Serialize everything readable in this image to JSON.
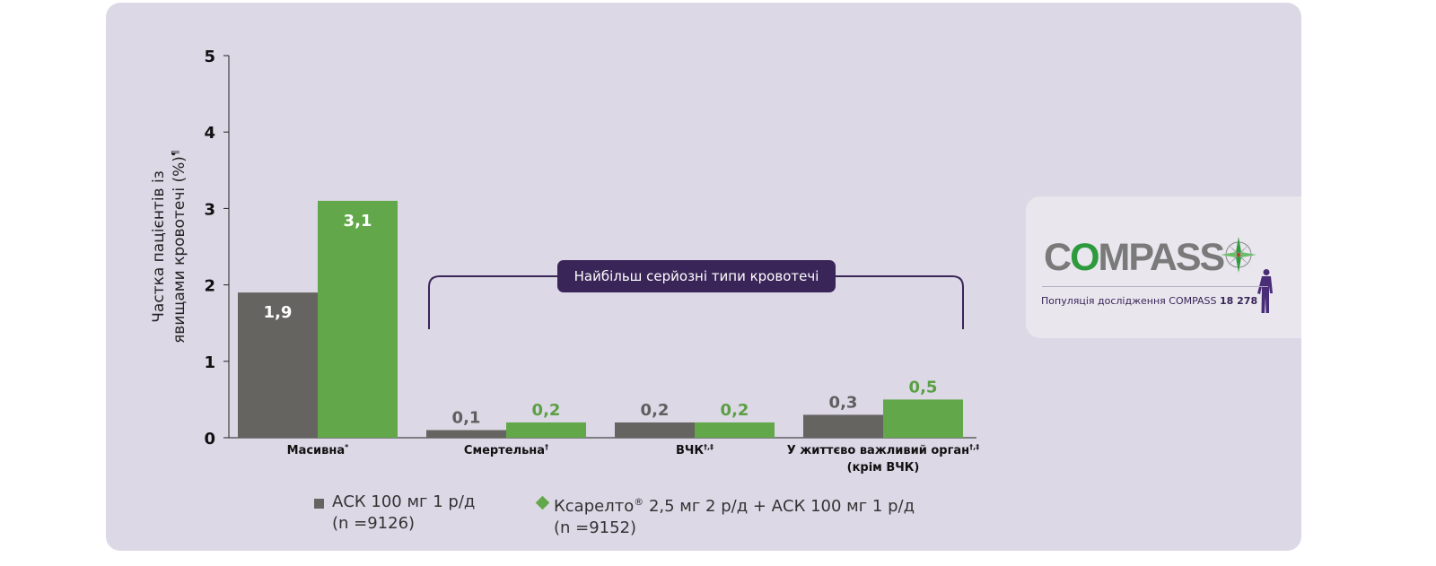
{
  "chart_data": {
    "type": "bar",
    "ylabel_line1": "Частка пацієнтів із",
    "ylabel_line2": "явищами кровотечі (%)",
    "ylabel_sup": "¶",
    "ylim": [
      0,
      5
    ],
    "yticks": [
      "0",
      "1",
      "2",
      "3",
      "4",
      "5"
    ],
    "categories": [
      {
        "label": "Масивна",
        "sup": "*",
        "line2": ""
      },
      {
        "label": "Смертельна",
        "sup": "†",
        "line2": ""
      },
      {
        "label": "ВЧК",
        "sup": "†,‡",
        "line2": ""
      },
      {
        "label": "У життєво важливий орган",
        "sup": "†,‡",
        "line2": "(крім ВЧК)"
      }
    ],
    "series": [
      {
        "name": "АСК 100 мг 1 р/д",
        "color": "#666460",
        "values": [
          1.9,
          0.1,
          0.2,
          0.3
        ],
        "labels": [
          "1,9",
          "0,1",
          "0,2",
          "0,3"
        ],
        "label_color": "#5f5f5f"
      },
      {
        "name": "Ксарелто® 2,5 мг 2 р/д + АСК 100 мг 1 р/д",
        "color": "#62a84a",
        "values": [
          3.1,
          0.2,
          0.2,
          0.5
        ],
        "labels": [
          "3,1",
          "0,2",
          "0,2",
          "0,5"
        ],
        "label_color": "#5aa043"
      }
    ],
    "annotation": "Найбільш серйозні типи кровотечі",
    "grid": false
  },
  "legend": {
    "item1_line1": "АСК 100 мг 1 р/д",
    "item1_line2": "(n =9126)",
    "item2_main": "Ксарелто",
    "item2_sup": "®",
    "item2_rest": " 2,5 мг 2 р/д + АСК 100 мг 1 р/д",
    "item2_line2": "(n =9152)"
  },
  "compass": {
    "logo_c": "C",
    "logo_o": "O",
    "logo_rest": "MPASS",
    "population_label": "Популяція дослідження COMPASS",
    "population_value": "18 278",
    "colors": {
      "logo_gray": "#7a7a7a",
      "logo_green": "#2e9a3e",
      "brand_purple": "#3a2558"
    }
  }
}
